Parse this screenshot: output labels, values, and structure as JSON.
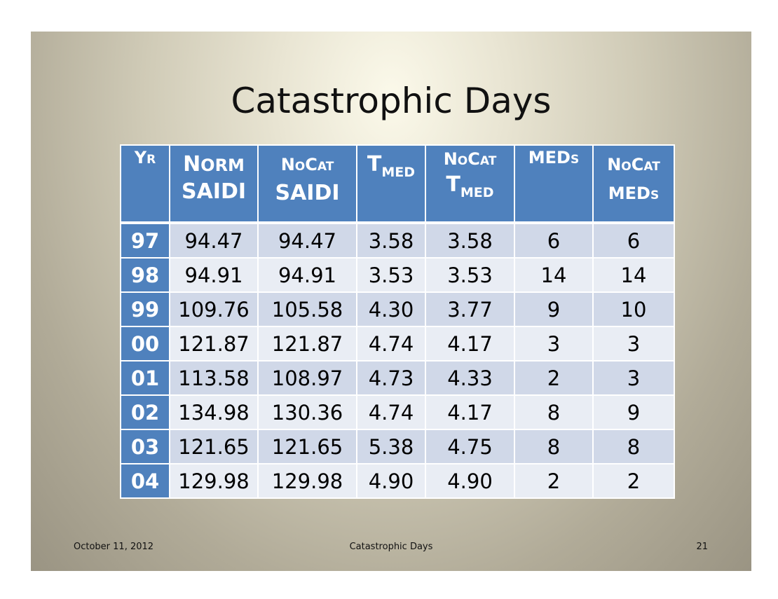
{
  "slide": {
    "title": "Catastrophic Days"
  },
  "table": {
    "headers": [
      {
        "parts": [
          "Y",
          "R"
        ]
      },
      {
        "parts": [
          "N",
          "ORM",
          "SAIDI"
        ]
      },
      {
        "parts": [
          "N",
          "O",
          "C",
          "AT",
          "SAIDI"
        ]
      },
      {
        "parts": [
          "T",
          "MED"
        ]
      },
      {
        "parts": [
          "N",
          "O",
          "C",
          "AT",
          "T",
          "MED"
        ]
      },
      {
        "parts": [
          "MED",
          "S"
        ]
      },
      {
        "parts": [
          "N",
          "O",
          "C",
          "AT",
          "MED",
          "S"
        ]
      }
    ],
    "rows": [
      {
        "yr": "97",
        "cells": [
          "94.47",
          "94.47",
          "3.58",
          "3.58",
          "6",
          "6"
        ]
      },
      {
        "yr": "98",
        "cells": [
          "94.91",
          "94.91",
          "3.53",
          "3.53",
          "14",
          "14"
        ]
      },
      {
        "yr": "99",
        "cells": [
          "109.76",
          "105.58",
          "4.30",
          "3.77",
          "9",
          "10"
        ]
      },
      {
        "yr": "00",
        "cells": [
          "121.87",
          "121.87",
          "4.74",
          "4.17",
          "3",
          "3"
        ]
      },
      {
        "yr": "01",
        "cells": [
          "113.58",
          "108.97",
          "4.73",
          "4.33",
          "2",
          "3"
        ]
      },
      {
        "yr": "02",
        "cells": [
          "134.98",
          "130.36",
          "4.74",
          "4.17",
          "8",
          "9"
        ]
      },
      {
        "yr": "03",
        "cells": [
          "121.65",
          "121.65",
          "5.38",
          "4.75",
          "8",
          "8"
        ]
      },
      {
        "yr": "04",
        "cells": [
          "129.98",
          "129.98",
          "4.90",
          "4.90",
          "2",
          "2"
        ]
      }
    ]
  },
  "footer": {
    "date": "October 11, 2012",
    "title": "Catastrophic Days",
    "page": "21"
  },
  "colors": {
    "header_blue": "#4f81bd",
    "row_dark": "#d0d8e8",
    "row_light": "#e9edf4"
  }
}
